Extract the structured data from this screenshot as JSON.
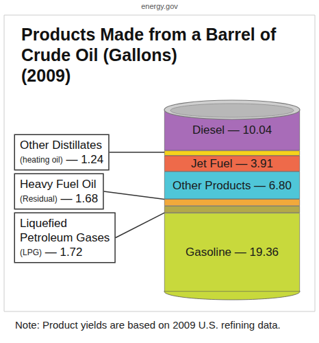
{
  "source": "energy.gov",
  "note": "Note: Product yields are based on 2009 U.S. refining data.",
  "chart_data": {
    "type": "bar",
    "title": "Products Made from a Barrel of Crude Oil (Gallons)",
    "subtitle": "(2009)",
    "stacked": true,
    "data_labels": true,
    "tick_labels": false,
    "grid": false,
    "ylim": [
      0,
      44.75
    ],
    "series": [
      {
        "name": "Gasoline",
        "color": "#c8d93c",
        "values": [
          19.36
        ],
        "value_labels": [
          "— 19.36"
        ]
      },
      {
        "name": "Liquefied Petroleum Gases",
        "color": "#b3a94a",
        "values": [
          1.72
        ],
        "value_labels": [
          "(LPG) — 1.72"
        ]
      },
      {
        "name": "Heavy Fuel Oil",
        "color": "#f2a93b",
        "values": [
          1.68
        ],
        "value_labels": [
          "(Residual) — 1.68"
        ]
      },
      {
        "name": "Other Products",
        "color": "#4fc6d8",
        "values": [
          6.8
        ],
        "value_labels": [
          "— 6.80"
        ]
      },
      {
        "name": "Jet Fuel",
        "color": "#ee6a4a",
        "values": [
          3.91
        ],
        "value_labels": [
          "— 3.91"
        ]
      },
      {
        "name": "Other Distillates",
        "color": "#f6d31c",
        "values": [
          1.24
        ],
        "value_labels": [
          "(heating oil) — 1.24"
        ]
      },
      {
        "name": "Diesel",
        "color": "#a86cb8",
        "values": [
          10.04
        ],
        "value_labels": [
          "— 10.04"
        ]
      }
    ]
  }
}
